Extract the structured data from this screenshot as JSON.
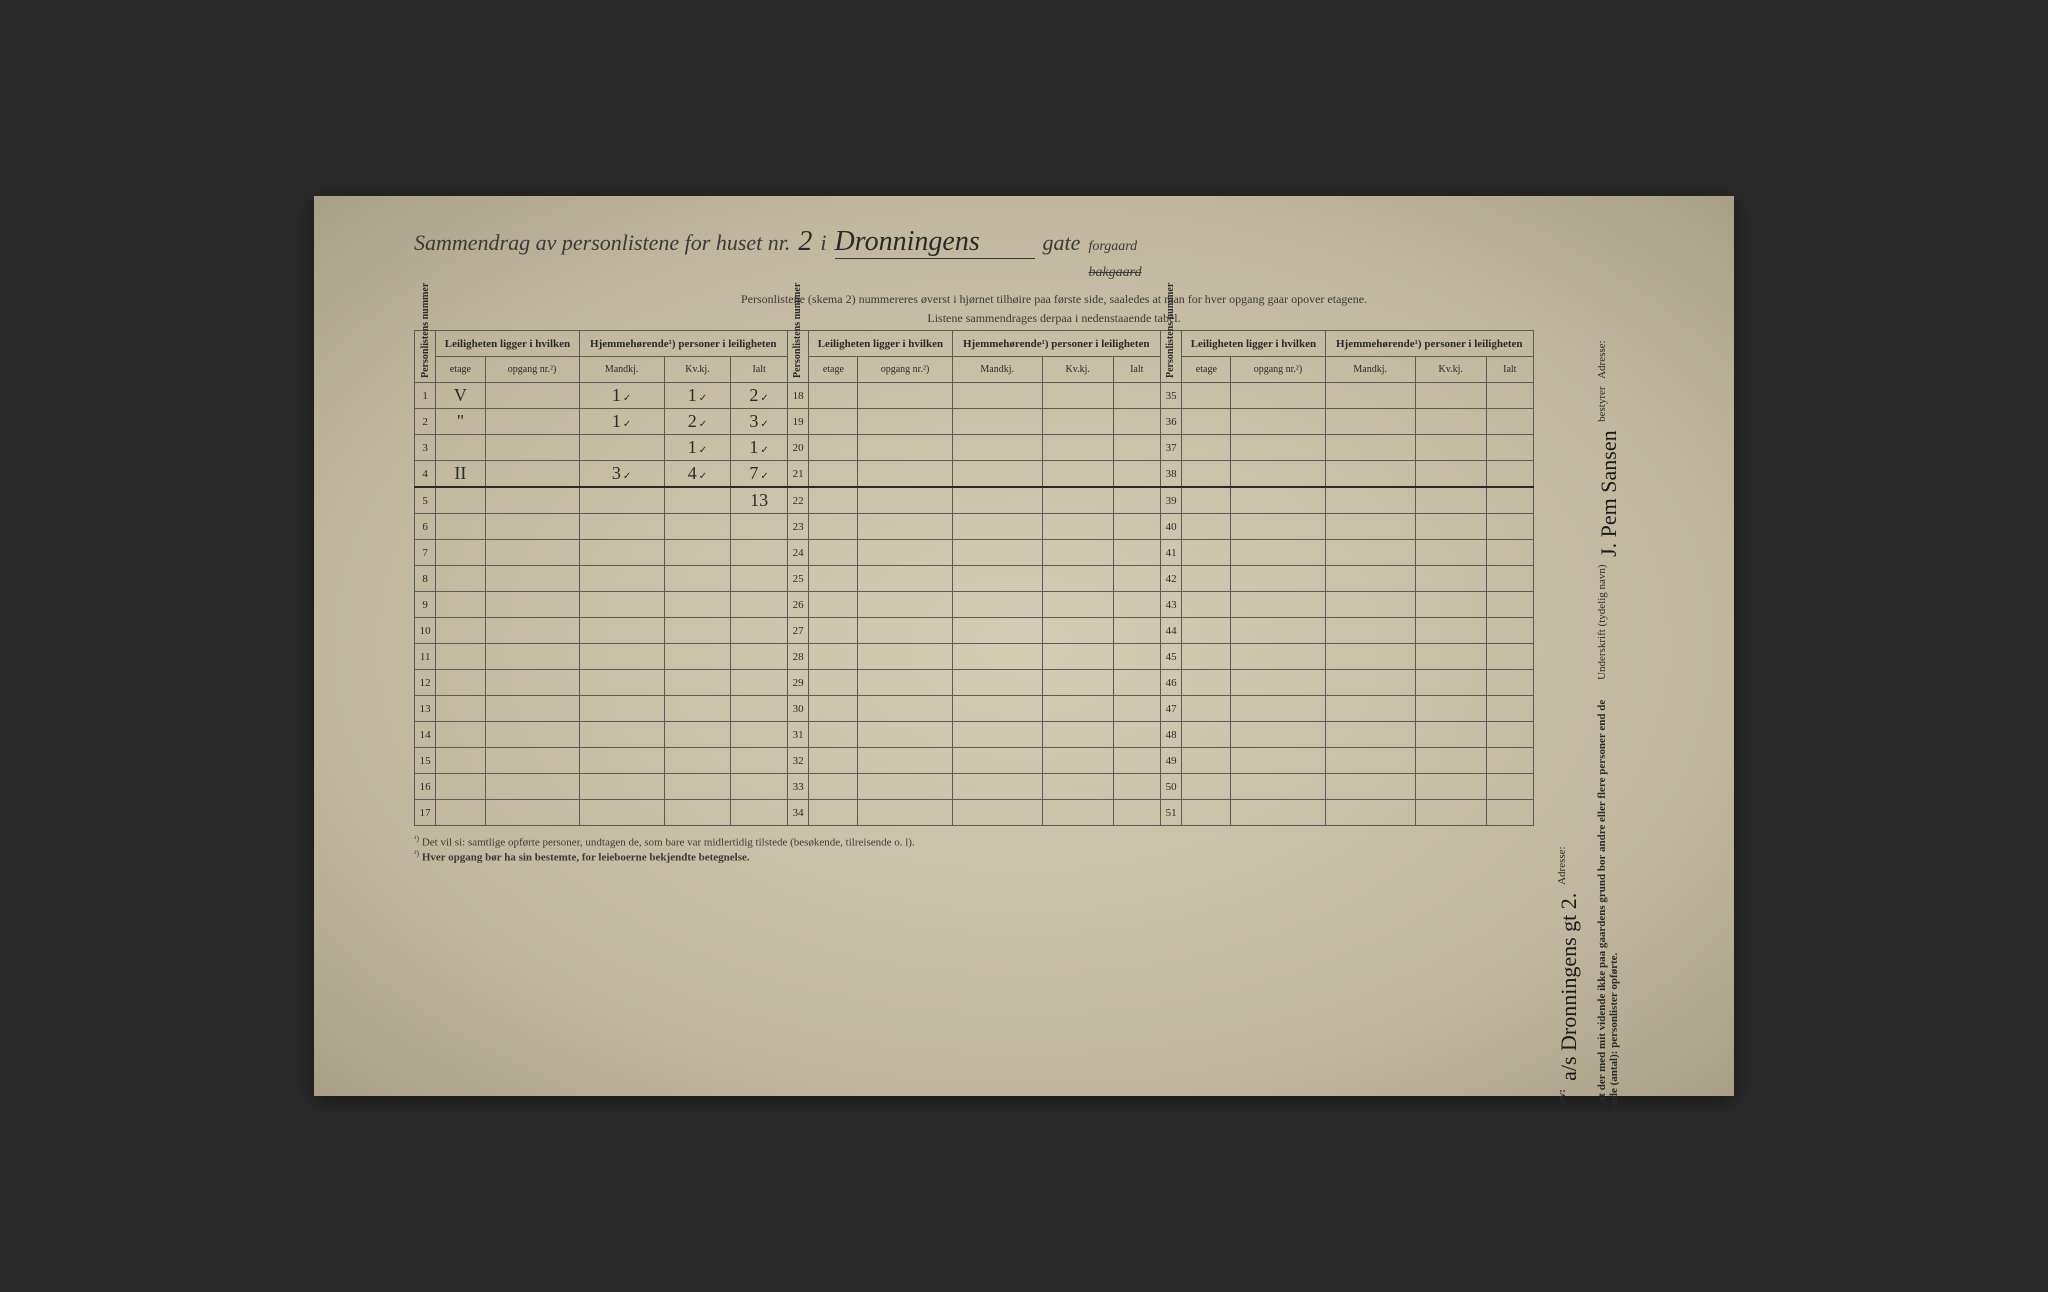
{
  "title": {
    "prefix": "Sammendrag av personlistene for huset nr.",
    "house_nr": "2",
    "i": "i",
    "street": "Dronningens",
    "gate": "gate",
    "opt_forgaard": "forgaard",
    "opt_bakgaard": "bakgaard"
  },
  "subtitle1": "Personlistene (skema 2) nummereres øverst i hjørnet tilhøire paa første side, saaledes at man for hver opgang gaar opover etagene.",
  "subtitle2": "Listene sammendrages derpaa i nedenstaaende tabel.",
  "headers": {
    "personlistens_nummer": "Personlistens nummer",
    "leiligheten": "Leiligheten ligger i hvilken",
    "hjemmehorende": "Hjemmehørende¹) personer i leiligheten",
    "etage": "etage",
    "opgang": "opgang nr.²)",
    "mandkj": "Mandkj.",
    "kvkj": "Kv.kj.",
    "ialt": "Ialt"
  },
  "rows_a": [
    {
      "n": "1",
      "etage": "V",
      "opgang": "",
      "m": "1",
      "k": "1",
      "i": "2",
      "check": true
    },
    {
      "n": "2",
      "etage": "\"",
      "opgang": "",
      "m": "1",
      "k": "2",
      "i": "3",
      "check": true
    },
    {
      "n": "3",
      "etage": "",
      "opgang": "",
      "m": "",
      "k": "1",
      "i": "1",
      "check": true
    },
    {
      "n": "4",
      "etage": "II",
      "opgang": "",
      "m": "3",
      "k": "4",
      "i": "7",
      "check": true,
      "underline": true
    },
    {
      "n": "5",
      "etage": "",
      "opgang": "",
      "m": "",
      "k": "",
      "i": "13",
      "check": false
    },
    {
      "n": "6"
    },
    {
      "n": "7"
    },
    {
      "n": "8"
    },
    {
      "n": "9"
    },
    {
      "n": "10"
    },
    {
      "n": "11"
    },
    {
      "n": "12"
    },
    {
      "n": "13"
    },
    {
      "n": "14"
    },
    {
      "n": "15"
    },
    {
      "n": "16"
    },
    {
      "n": "17"
    }
  ],
  "rows_b": [
    {
      "n": "18"
    },
    {
      "n": "19"
    },
    {
      "n": "20"
    },
    {
      "n": "21"
    },
    {
      "n": "22"
    },
    {
      "n": "23"
    },
    {
      "n": "24"
    },
    {
      "n": "25"
    },
    {
      "n": "26"
    },
    {
      "n": "27"
    },
    {
      "n": "28"
    },
    {
      "n": "29"
    },
    {
      "n": "30"
    },
    {
      "n": "31"
    },
    {
      "n": "32"
    },
    {
      "n": "33"
    },
    {
      "n": "34"
    }
  ],
  "rows_c": [
    {
      "n": "35"
    },
    {
      "n": "36"
    },
    {
      "n": "37"
    },
    {
      "n": "38"
    },
    {
      "n": "39"
    },
    {
      "n": "40"
    },
    {
      "n": "41"
    },
    {
      "n": "42"
    },
    {
      "n": "43"
    },
    {
      "n": "44"
    },
    {
      "n": "45"
    },
    {
      "n": "46"
    },
    {
      "n": "47"
    },
    {
      "n": "48"
    },
    {
      "n": "49"
    },
    {
      "n": "50"
    },
    {
      "n": "51"
    }
  ],
  "footnote1_sup": "¹)",
  "footnote1": "Det vil si: samtlige opførte personer, undtagen de, som bare var midlertidig tilstede (besøkende, tilreisende o. l).",
  "footnote2_sup": "²)",
  "footnote2": "Hver opgang bør ha sin bestemte, for leieboerne bekjendte betegnelse.",
  "side": {
    "gaarden_eies": "Gaarden eies av:",
    "gaarden_eies_val": "a/s Dronningens gt 2.",
    "adresse": "Adresse:",
    "bevidnes": "Det bevidnes, at der med mit vidende ikke paa gaardens grund bor andre eller flere personer end de paa medfølgende (antal): personlister opførte.",
    "underskrift": "Underskrift (tydelig navn)",
    "signature": "J. Pem Sansen",
    "bestyrer": "bestyrer"
  }
}
